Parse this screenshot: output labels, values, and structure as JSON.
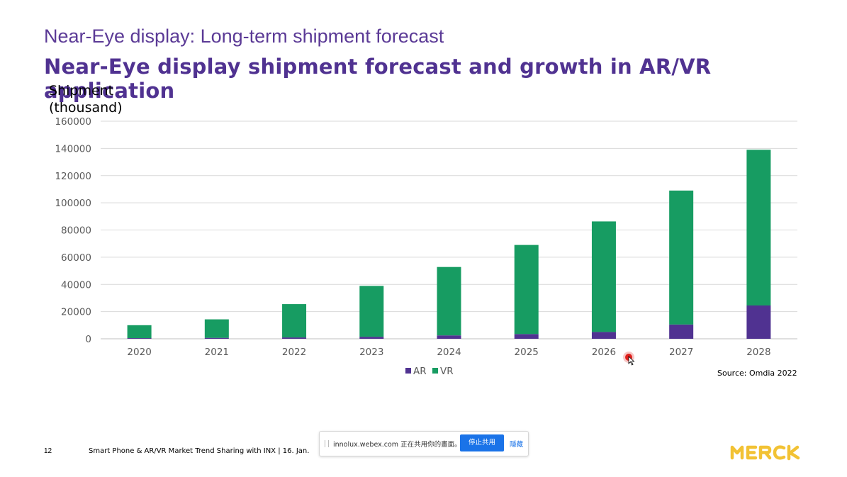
{
  "slide": {
    "title": "Near-Eye display: Long-term shipment forecast",
    "subtitle": "Near-Eye display shipment forecast and growth in AR/VR application",
    "source": "Source: Omdia 2022",
    "page_number": "12",
    "footer_text": "Smart Phone & AR/VR Market Trend Sharing with INX | 16. Jan.",
    "logo_text": "MERCK"
  },
  "share_bar": {
    "message": "innolux.webex.com 正在共用你的畫面。",
    "stop_label": "停止共用",
    "hide_label": "隱藏"
  },
  "chart_data": {
    "type": "bar",
    "stacked": true,
    "ylabel": "Shipment (thousand)",
    "ylabel_lines": [
      "Shipment",
      "(thousand)"
    ],
    "ylim": [
      0,
      160000
    ],
    "yticks": [
      0,
      20000,
      40000,
      60000,
      80000,
      100000,
      120000,
      140000,
      160000
    ],
    "categories": [
      "2020",
      "2021",
      "2022",
      "2023",
      "2024",
      "2025",
      "2026",
      "2027",
      "2028"
    ],
    "series": [
      {
        "name": "AR",
        "color": "#503291",
        "values": [
          500,
          700,
          1000,
          1500,
          2500,
          3500,
          5000,
          10500,
          24500
        ]
      },
      {
        "name": "VR",
        "color": "#179c62",
        "values": [
          9500,
          13600,
          24500,
          37400,
          50300,
          65500,
          81300,
          98500,
          114500
        ]
      }
    ],
    "grid": true,
    "legend_position": "bottom"
  }
}
